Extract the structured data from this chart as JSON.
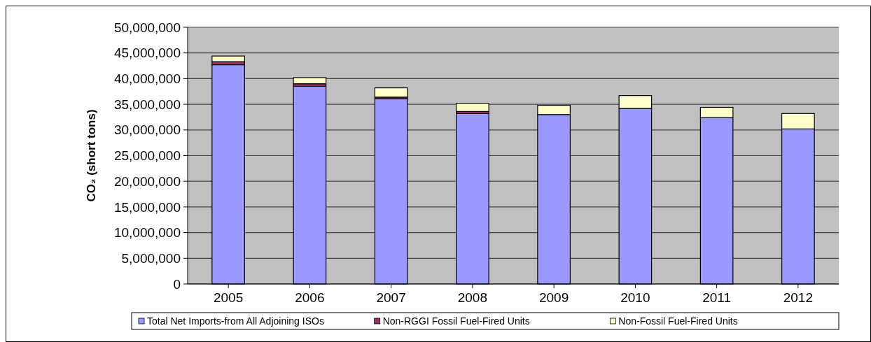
{
  "chart_data": {
    "type": "bar",
    "stacked": true,
    "ylabel": "CO₂ (short tons)",
    "categories": [
      "2005",
      "2006",
      "2007",
      "2008",
      "2009",
      "2010",
      "2011",
      "2012"
    ],
    "series": [
      {
        "name": "Total Net Imports-from All Adjoining ISOs",
        "color": "#9999ff",
        "values": [
          42700000,
          38500000,
          36100000,
          33200000,
          33000000,
          34200000,
          32400000,
          30200000
        ]
      },
      {
        "name": "Non-RGGI Fossil Fuel-Fired Units",
        "color": "#993366",
        "values": [
          600000,
          500000,
          300000,
          400000,
          null,
          null,
          null,
          null
        ]
      },
      {
        "name": "Non-Fossil Fuel-Fired Units",
        "color": "#ffffcc",
        "values": [
          1100000,
          1200000,
          1800000,
          1600000,
          1800000,
          2500000,
          2000000,
          3000000
        ]
      }
    ],
    "ylim": [
      0,
      50000000
    ],
    "yticks": [
      {
        "value": 0,
        "label": "0"
      },
      {
        "value": 5000000,
        "label": "5,000,000"
      },
      {
        "value": 10000000,
        "label": "10,000,000"
      },
      {
        "value": 15000000,
        "label": "15,000,000"
      },
      {
        "value": 20000000,
        "label": "20,000,000"
      },
      {
        "value": 25000000,
        "label": "25,000,000"
      },
      {
        "value": 30000000,
        "label": "30,000,000"
      },
      {
        "value": 35000000,
        "label": "35,000,000"
      },
      {
        "value": 40000000,
        "label": "40,000,000"
      },
      {
        "value": 45000000,
        "label": "45,000,000"
      },
      {
        "value": 50000000,
        "label": "50,000,000"
      }
    ],
    "grid": "y",
    "legend": "bottom"
  }
}
